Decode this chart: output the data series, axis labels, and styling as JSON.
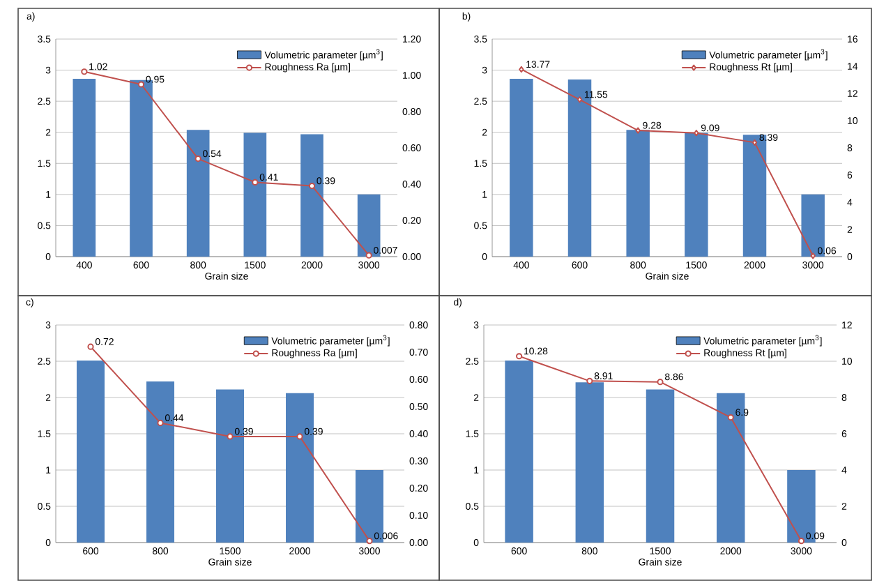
{
  "chart_data": [
    {
      "type": "bar",
      "title": "a)",
      "xlabel": "Grain size",
      "categories": [
        "400",
        "600",
        "800",
        "1500",
        "2000",
        "3000"
      ],
      "ylim": [
        0,
        3.5
      ],
      "yticks": [
        0,
        0.5,
        1,
        1.5,
        2,
        2.5,
        3,
        3.5
      ],
      "y2lim": [
        0,
        1.2
      ],
      "y2ticks": [
        {
          "value": 0,
          "label": "0.00"
        },
        {
          "value": 0.2,
          "label": "0.20"
        },
        {
          "value": 0.4,
          "label": "0.40"
        },
        {
          "value": 0.6,
          "label": "0.60"
        },
        {
          "value": 0.8,
          "label": "0.80"
        },
        {
          "value": 1.0,
          "label": "1.00"
        },
        {
          "value": 1.2,
          "label": "1.20"
        }
      ],
      "grid": "y",
      "legend": "top right",
      "series": [
        {
          "name": "Volumetric parameter [µm$^{3}$]",
          "color": "#4f81bd",
          "values": [
            2.86,
            2.84,
            2.04,
            1.99,
            1.97,
            1.0
          ]
        },
        {
          "name": "Roughness Ra [µm]",
          "type": "line",
          "axis": "y2",
          "color": "#c0504d",
          "marker": "circle",
          "values": [
            1.02,
            0.95,
            0.54,
            0.41,
            0.39,
            0.007
          ],
          "value_labels": [
            "1.02",
            "0.95",
            "0.54",
            "0.41",
            "0.39",
            "0.007"
          ]
        }
      ]
    },
    {
      "type": "bar",
      "title": "b)",
      "xlabel": "Grain size",
      "categories": [
        "400",
        "600",
        "800",
        "1500",
        "2000",
        "3000"
      ],
      "ylim": [
        0,
        3.5
      ],
      "yticks": [
        0,
        0.5,
        1,
        1.5,
        2,
        2.5,
        3,
        3.5
      ],
      "y2lim": [
        0,
        16
      ],
      "y2ticks": [
        0,
        2,
        4,
        6,
        8,
        10,
        12,
        14,
        16
      ],
      "grid": "y",
      "legend": "top right",
      "series": [
        {
          "name": "Volumetric parameter [µm$^{3}$]",
          "color": "#4f81bd",
          "values": [
            2.86,
            2.85,
            2.04,
            1.99,
            1.96,
            1.0
          ]
        },
        {
          "name": "Roughness Rt [µm]",
          "type": "line",
          "axis": "y2",
          "color": "#c0504d",
          "marker": "diamond",
          "values": [
            13.77,
            11.55,
            9.28,
            9.09,
            8.39,
            0.06
          ],
          "value_labels": [
            "13.77",
            "11.55",
            "9.28",
            "9.09",
            "8.39",
            "0.06"
          ]
        }
      ]
    },
    {
      "type": "bar",
      "title": "c)",
      "xlabel": "Grain size",
      "categories": [
        "600",
        "800",
        "1500",
        "2000",
        "3000"
      ],
      "ylim": [
        0,
        3
      ],
      "yticks": [
        0,
        0.5,
        1,
        1.5,
        2,
        2.5,
        3
      ],
      "y2lim": [
        0,
        0.8
      ],
      "y2ticks": [
        {
          "value": 0,
          "label": "0.00"
        },
        {
          "value": 0.1,
          "label": "0.10"
        },
        {
          "value": 0.2,
          "label": "0.20"
        },
        {
          "value": 0.3,
          "label": "0.30"
        },
        {
          "value": 0.4,
          "label": "0.40"
        },
        {
          "value": 0.5,
          "label": "0.50"
        },
        {
          "value": 0.6,
          "label": "0.60"
        },
        {
          "value": 0.7,
          "label": "0.70"
        },
        {
          "value": 0.8,
          "label": "0.80"
        }
      ],
      "grid": "y",
      "legend": "top right",
      "series": [
        {
          "name": "Volumetric parameter [µm$^{3}$]",
          "color": "#4f81bd",
          "values": [
            2.51,
            2.22,
            2.11,
            2.06,
            1.0
          ]
        },
        {
          "name": "Roughness Ra [µm]",
          "type": "line",
          "axis": "y2",
          "color": "#c0504d",
          "marker": "circle",
          "values": [
            0.72,
            0.44,
            0.39,
            0.39,
            0.006
          ],
          "value_labels": [
            "0.72",
            "0.44",
            "0.39",
            "0.39",
            "0.006"
          ]
        }
      ]
    },
    {
      "type": "bar",
      "title": "d)",
      "xlabel": "Grain size",
      "categories": [
        "600",
        "800",
        "1500",
        "2000",
        "3000"
      ],
      "ylim": [
        0,
        3
      ],
      "yticks": [
        0,
        0.5,
        1,
        1.5,
        2,
        2.5,
        3
      ],
      "y2lim": [
        0,
        12
      ],
      "y2ticks": [
        0,
        2,
        4,
        6,
        8,
        10,
        12
      ],
      "grid": "y",
      "legend": "top right",
      "series": [
        {
          "name": "Volumetric parameter [µm$^{3}$]",
          "color": "#4f81bd",
          "values": [
            2.51,
            2.21,
            2.11,
            2.06,
            1.0
          ]
        },
        {
          "name": "Roughness Rt [µm]",
          "type": "line",
          "axis": "y2",
          "color": "#c0504d",
          "marker": "circle",
          "values": [
            10.28,
            8.91,
            8.86,
            6.9,
            0.09
          ],
          "value_labels": [
            "10.28",
            "8.91",
            "8.86",
            "6.9",
            "0.09"
          ]
        }
      ]
    }
  ]
}
